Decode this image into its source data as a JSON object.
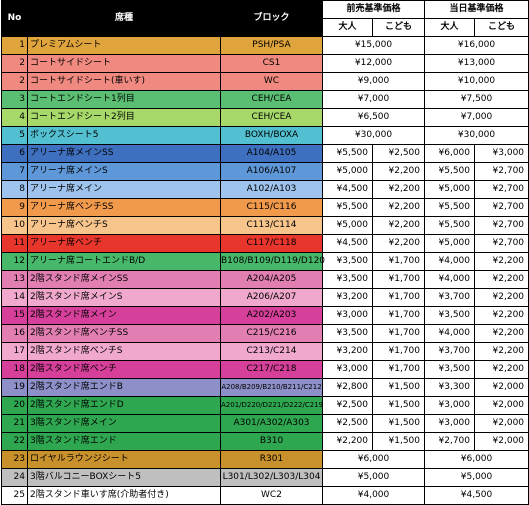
{
  "header": {
    "no": "No",
    "seat": "席種",
    "block": "ブロック",
    "presale": "前売基準価格",
    "sameday": "当日基準価格",
    "adult": "大人",
    "child": "こども"
  },
  "rows": [
    {
      "no": "1",
      "seat": "プレミアムシート",
      "block": "PSH/PSA",
      "pa": "¥15,000",
      "pc": "",
      "da": "¥16,000",
      "dc": "",
      "merged": true,
      "color": "#e0a43c"
    },
    {
      "no": "2",
      "seat": "コートサイドシート",
      "block": "CS1",
      "pa": "¥12,000",
      "pc": "",
      "da": "¥13,000",
      "dc": "",
      "merged": true,
      "color": "#f08a80"
    },
    {
      "no": "2",
      "seat": "コートサイドシート(車いす)",
      "block": "WC",
      "pa": "¥9,000",
      "pc": "",
      "da": "¥10,000",
      "dc": "",
      "merged": true,
      "color": "#f08a80"
    },
    {
      "no": "3",
      "seat": "コートエンドシート1列目",
      "block": "CEH/CEA",
      "pa": "¥7,000",
      "pc": "",
      "da": "¥7,500",
      "dc": "",
      "merged": true,
      "color": "#5bbf73"
    },
    {
      "no": "4",
      "seat": "コートエンドシート2列目",
      "block": "CEH/CEA",
      "pa": "¥6,500",
      "pc": "",
      "da": "¥7,000",
      "dc": "",
      "merged": true,
      "color": "#a6d96a"
    },
    {
      "no": "5",
      "seat": "ボックスシート5",
      "block": "BOXH/BOXA",
      "pa": "¥30,000",
      "pc": "",
      "da": "¥30,000",
      "dc": "",
      "merged": true,
      "color": "#52c0d0"
    },
    {
      "no": "6",
      "seat": "アリーナ席メインSS",
      "block": "A104/A105",
      "pa": "¥5,500",
      "pc": "¥2,500",
      "da": "¥6,000",
      "dc": "¥3,000",
      "merged": false,
      "color": "#3f6fbf"
    },
    {
      "no": "7",
      "seat": "アリーナ席メインS",
      "block": "A106/A107",
      "pa": "¥5,000",
      "pc": "¥2,200",
      "da": "¥5,500",
      "dc": "¥2,700",
      "merged": false,
      "color": "#5f98d8"
    },
    {
      "no": "8",
      "seat": "アリーナ席メイン",
      "block": "A102/A103",
      "pa": "¥4,500",
      "pc": "¥2,200",
      "da": "¥5,000",
      "dc": "¥2,700",
      "merged": false,
      "color": "#9ec4ee"
    },
    {
      "no": "9",
      "seat": "アリーナ席ベンチSS",
      "block": "C115/C116",
      "pa": "¥5,500",
      "pc": "¥2,200",
      "da": "¥5,500",
      "dc": "¥2,700",
      "merged": false,
      "color": "#f29a4c"
    },
    {
      "no": "10",
      "seat": "アリーナ席ベンチS",
      "block": "C113/C114",
      "pa": "¥5,000",
      "pc": "¥2,200",
      "da": "¥5,500",
      "dc": "¥2,700",
      "merged": false,
      "color": "#f7c48c"
    },
    {
      "no": "11",
      "seat": "アリーナ席ベンチ",
      "block": "C117/C118",
      "pa": "¥4,500",
      "pc": "¥2,200",
      "da": "¥5,000",
      "dc": "¥2,700",
      "merged": false,
      "color": "#e8362d"
    },
    {
      "no": "12",
      "seat": "アリーナ席コートエンドB/D",
      "block": "B108/B109/D119/D120",
      "pa": "¥3,500",
      "pc": "¥1,700",
      "da": "¥4,000",
      "dc": "¥2,200",
      "merged": false,
      "color": "#47b86a"
    },
    {
      "no": "13",
      "seat": "2階スタンド席メインSS",
      "block": "A204/A205",
      "pa": "¥3,500",
      "pc": "¥1,700",
      "da": "¥4,000",
      "dc": "¥2,200",
      "merged": false,
      "color": "#e27fb2"
    },
    {
      "no": "14",
      "seat": "2階スタンド席メインS",
      "block": "A206/A207",
      "pa": "¥3,200",
      "pc": "¥1,700",
      "da": "¥3,700",
      "dc": "¥2,200",
      "merged": false,
      "color": "#f0a9cc"
    },
    {
      "no": "15",
      "seat": "2階スタンド席メイン",
      "block": "A202/A203",
      "pa": "¥3,000",
      "pc": "¥1,700",
      "da": "¥3,500",
      "dc": "¥2,200",
      "merged": false,
      "color": "#d6409a"
    },
    {
      "no": "16",
      "seat": "2階スタンド席ベンチSS",
      "block": "C215/C216",
      "pa": "¥3,500",
      "pc": "¥1,700",
      "da": "¥4,000",
      "dc": "¥2,200",
      "merged": false,
      "color": "#e27fb2"
    },
    {
      "no": "17",
      "seat": "2階スタンド席ベンチS",
      "block": "C213/C214",
      "pa": "¥3,200",
      "pc": "¥1,700",
      "da": "¥3,700",
      "dc": "¥2,200",
      "merged": false,
      "color": "#f0a9cc"
    },
    {
      "no": "18",
      "seat": "2階スタンド席ベンチ",
      "block": "C217/C218",
      "pa": "¥3,000",
      "pc": "¥1,700",
      "da": "¥3,500",
      "dc": "¥2,200",
      "merged": false,
      "color": "#d6409a"
    },
    {
      "no": "19",
      "seat": "2階スタンド席エンドB",
      "block": "A208/B209/B210/B211/C212",
      "pa": "¥2,800",
      "pc": "¥1,500",
      "da": "¥3,300",
      "dc": "¥2,000",
      "merged": false,
      "color": "#8d8fc8",
      "small": true
    },
    {
      "no": "20",
      "seat": "2階スタンド席エンドD",
      "block": "A201/D220/D221/D222/C219",
      "pa": "¥2,500",
      "pc": "¥1,500",
      "da": "¥3,000",
      "dc": "¥2,000",
      "merged": false,
      "color": "#2fa650",
      "small": true
    },
    {
      "no": "21",
      "seat": "3階スタンド席メイン",
      "block": "A301/A302/A303",
      "pa": "¥2,500",
      "pc": "¥1,500",
      "da": "¥3,000",
      "dc": "¥2,000",
      "merged": false,
      "color": "#2fa650"
    },
    {
      "no": "22",
      "seat": "3階スタンド席エンド",
      "block": "B310",
      "pa": "¥2,200",
      "pc": "¥1,500",
      "da": "¥2,700",
      "dc": "¥2,000",
      "merged": false,
      "color": "#2fa650"
    },
    {
      "no": "23",
      "seat": "ロイヤルラウンジシート",
      "block": "R301",
      "pa": "¥6,000",
      "pc": "",
      "da": "¥6,000",
      "dc": "",
      "merged": true,
      "color": "#c9912c"
    },
    {
      "no": "24",
      "seat": "3階バルコニーBOXシート5",
      "block": "L301/L302/L303/L304",
      "pa": "¥5,000",
      "pc": "",
      "da": "¥5,000",
      "dc": "",
      "merged": true,
      "color": "#bfbfbf"
    },
    {
      "no": "25",
      "seat": "2階スタンド車いす席(介助者付き)",
      "block": "WC2",
      "pa": "¥4,000",
      "pc": "",
      "da": "¥4,500",
      "dc": "",
      "merged": true,
      "color": "#ffffff"
    }
  ]
}
